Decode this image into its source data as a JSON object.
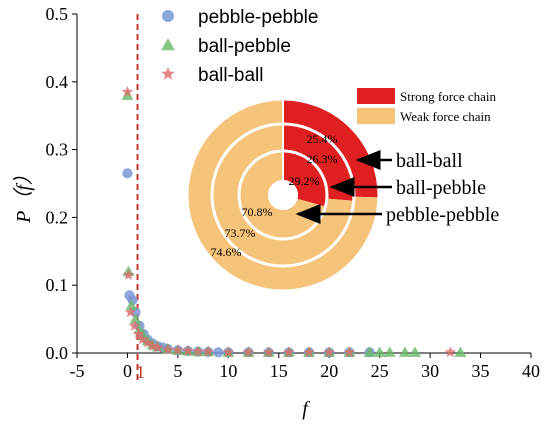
{
  "chart_data": {
    "scatter": {
      "type": "scatter",
      "xlabel": "f",
      "ylabel": "P（f）",
      "xlim": [
        -5,
        40
      ],
      "ylim": [
        0,
        0.5
      ],
      "x_ticks": [
        "-5",
        "0",
        "5",
        "10",
        "15",
        "20",
        "25",
        "30",
        "35",
        "40"
      ],
      "y_ticks": [
        "0.0",
        "0.1",
        "0.2",
        "0.3",
        "0.4",
        "0.5"
      ],
      "grid": false,
      "legend_position": "top-center",
      "reference_line": {
        "x": 1,
        "label": "1",
        "color": "#c0392b",
        "style": "dashed"
      },
      "series": [
        {
          "name": "pebble-pebble",
          "marker": "circle",
          "color": "#7b96d4",
          "points": [
            [
              0,
              0.265
            ],
            [
              0.2,
              0.085
            ],
            [
              0.5,
              0.078
            ],
            [
              0.8,
              0.06
            ],
            [
              1.2,
              0.04
            ],
            [
              1.6,
              0.028
            ],
            [
              2,
              0.02
            ],
            [
              2.5,
              0.014
            ],
            [
              3,
              0.01
            ],
            [
              3.5,
              0.008
            ],
            [
              4,
              0.006
            ],
            [
              5,
              0.004
            ],
            [
              6,
              0.003
            ],
            [
              7,
              0.002
            ],
            [
              8,
              0.0015
            ],
            [
              9,
              0.001
            ],
            [
              10,
              0.001
            ],
            [
              12,
              0.001
            ],
            [
              14,
              0.001
            ],
            [
              16,
              0.001
            ],
            [
              18,
              0.001
            ],
            [
              20,
              0.001
            ],
            [
              22,
              0.001
            ],
            [
              24,
              0.001
            ]
          ]
        },
        {
          "name": "ball-pebble",
          "marker": "triangle",
          "color": "#6ab86a",
          "points": [
            [
              0,
              0.38
            ],
            [
              0.1,
              0.12
            ],
            [
              0.4,
              0.07
            ],
            [
              0.8,
              0.05
            ],
            [
              1.2,
              0.035
            ],
            [
              1.6,
              0.025
            ],
            [
              2,
              0.018
            ],
            [
              2.5,
              0.012
            ],
            [
              3,
              0.009
            ],
            [
              4,
              0.006
            ],
            [
              5,
              0.004
            ],
            [
              6,
              0.003
            ],
            [
              7,
              0.002
            ],
            [
              8,
              0.002
            ],
            [
              10,
              0.001
            ],
            [
              12,
              0.001
            ],
            [
              14,
              0.001
            ],
            [
              16,
              0.001
            ],
            [
              18,
              0.001
            ],
            [
              20,
              0.001
            ],
            [
              22,
              0.001
            ],
            [
              24,
              0.001
            ],
            [
              25,
              0.001
            ],
            [
              26,
              0.001
            ],
            [
              27.5,
              0.001
            ],
            [
              28.5,
              0.001
            ],
            [
              33,
              0.001
            ]
          ]
        },
        {
          "name": "ball-ball",
          "marker": "star",
          "color": "#d96b6b",
          "points": [
            [
              0,
              0.385
            ],
            [
              0.1,
              0.115
            ],
            [
              0.3,
              0.06
            ],
            [
              0.7,
              0.04
            ],
            [
              1.1,
              0.028
            ],
            [
              1.5,
              0.02
            ],
            [
              2,
              0.015
            ],
            [
              2.5,
              0.01
            ],
            [
              3,
              0.008
            ],
            [
              4,
              0.005
            ],
            [
              5,
              0.004
            ],
            [
              6,
              0.003
            ],
            [
              7,
              0.002
            ],
            [
              8,
              0.002
            ],
            [
              10,
              0.001
            ],
            [
              12,
              0.001
            ],
            [
              14,
              0.001
            ],
            [
              16,
              0.001
            ],
            [
              18,
              0.001
            ],
            [
              20,
              0.001
            ],
            [
              22,
              0.001
            ],
            [
              32,
              0.001
            ]
          ]
        }
      ]
    },
    "donut": {
      "type": "pie",
      "legend": [
        {
          "name": "Strong force chain",
          "color": "#e02020"
        },
        {
          "name": "Weak force chain",
          "color": "#f6c37a"
        }
      ],
      "rings": [
        {
          "name": "ball-ball",
          "strong": 25.4,
          "weak": 74.6,
          "strong_label": "25.4%",
          "weak_label": "74.6%"
        },
        {
          "name": "ball-pebble",
          "strong": 26.3,
          "weak": 73.7,
          "strong_label": "26.3%",
          "weak_label": "73.7%"
        },
        {
          "name": "pebble-pebble",
          "strong": 29.2,
          "weak": 70.8,
          "strong_label": "29.2%",
          "weak_label": "70.8%"
        }
      ]
    }
  }
}
